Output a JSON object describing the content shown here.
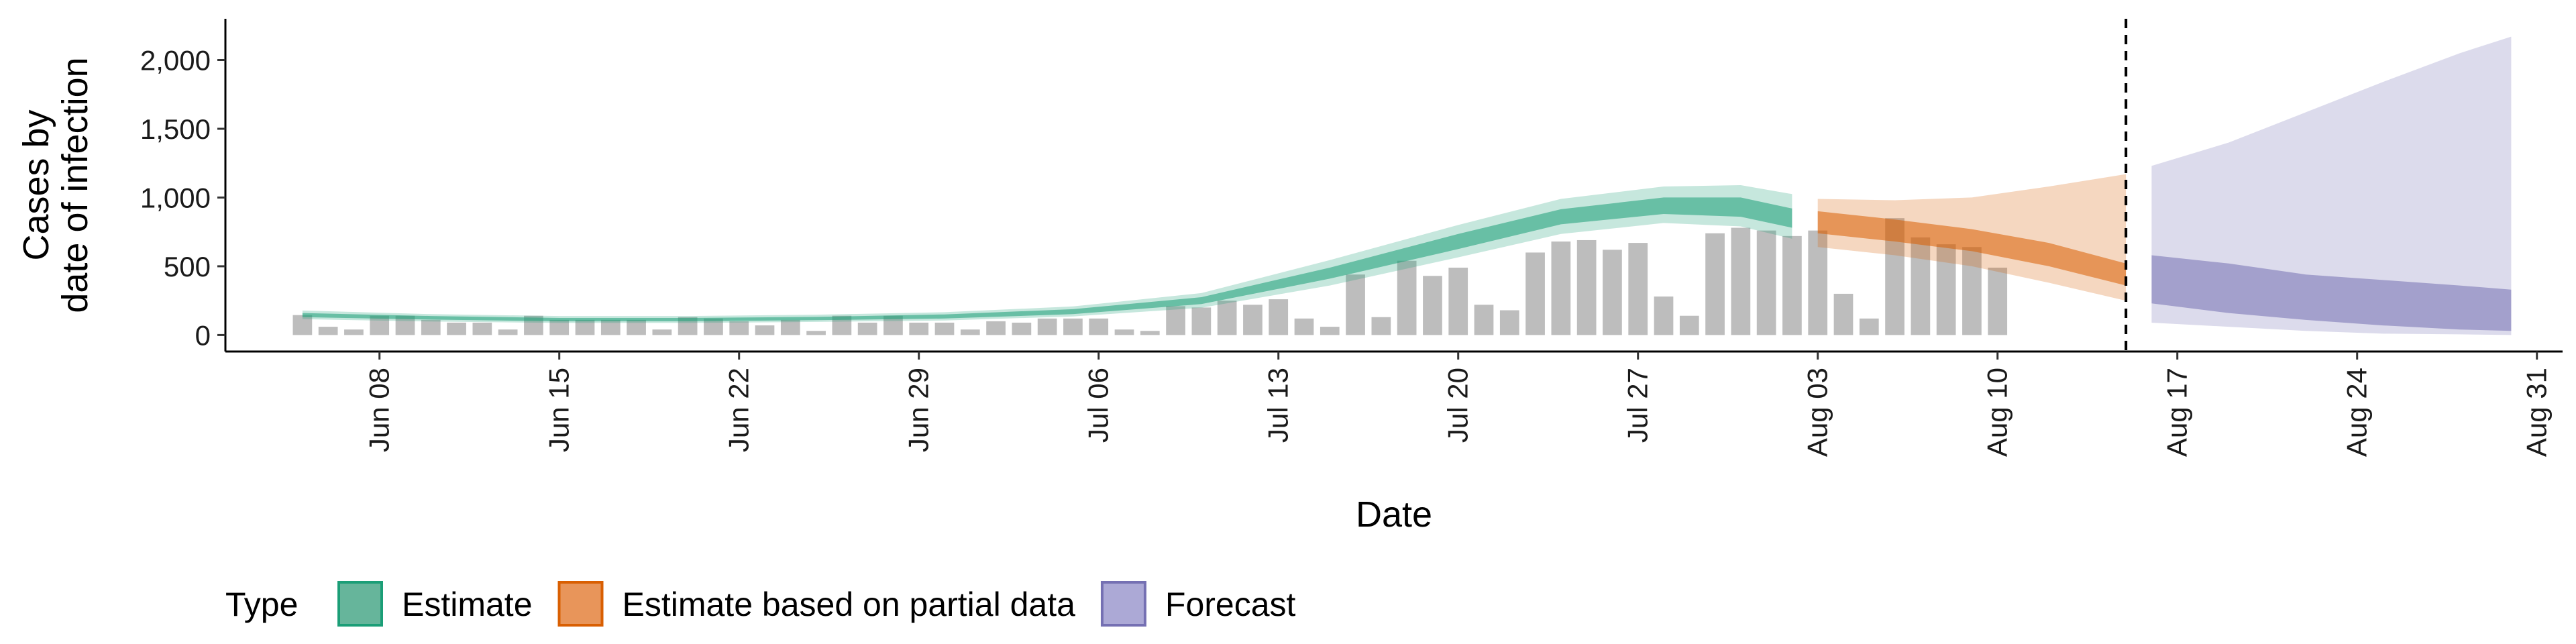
{
  "chart_data": {
    "type": "area",
    "xlabel": "Date",
    "ylabel_lines": [
      "Cases by",
      "date of infection"
    ],
    "x_start": "2020-06-05",
    "xlim": [
      "2020-06-02",
      "2020-09-01"
    ],
    "ylim": [
      -120,
      2300
    ],
    "grid": false,
    "x_ticks": [
      {
        "date": "2020-06-08",
        "label": "Jun 08"
      },
      {
        "date": "2020-06-15",
        "label": "Jun 15"
      },
      {
        "date": "2020-06-22",
        "label": "Jun 22"
      },
      {
        "date": "2020-06-29",
        "label": "Jun 29"
      },
      {
        "date": "2020-07-06",
        "label": "Jul 06"
      },
      {
        "date": "2020-07-13",
        "label": "Jul 13"
      },
      {
        "date": "2020-07-20",
        "label": "Jul 20"
      },
      {
        "date": "2020-07-27",
        "label": "Jul 27"
      },
      {
        "date": "2020-08-03",
        "label": "Aug 03"
      },
      {
        "date": "2020-08-10",
        "label": "Aug 10"
      },
      {
        "date": "2020-08-17",
        "label": "Aug 17"
      },
      {
        "date": "2020-08-24",
        "label": "Aug 24"
      },
      {
        "date": "2020-08-31",
        "label": "Aug 31"
      }
    ],
    "y_ticks": [
      {
        "value": 0,
        "label": "0"
      },
      {
        "value": 500,
        "label": "500"
      },
      {
        "value": 1000,
        "label": "1,000"
      },
      {
        "value": 1500,
        "label": "1,500"
      },
      {
        "value": 2000,
        "label": "2,000"
      }
    ],
    "reported_cases": [
      145,
      60,
      40,
      140,
      140,
      110,
      90,
      90,
      40,
      140,
      110,
      110,
      110,
      110,
      40,
      130,
      120,
      100,
      70,
      110,
      30,
      140,
      90,
      140,
      90,
      90,
      40,
      100,
      90,
      120,
      120,
      120,
      40,
      30,
      210,
      200,
      250,
      220,
      260,
      120,
      60,
      440,
      130,
      540,
      430,
      490,
      220,
      180,
      600,
      680,
      690,
      620,
      670,
      280,
      140,
      740,
      780,
      760,
      720,
      760,
      300,
      120,
      850,
      710,
      660,
      640,
      490
    ],
    "reporting_cutoff": "2020-08-15",
    "series": [
      {
        "name": "Estimate",
        "color": "#1b9e77",
        "dates": [
          "2020-06-05",
          "2020-06-10",
          "2020-06-15",
          "2020-06-20",
          "2020-06-25",
          "2020-06-30",
          "2020-07-05",
          "2020-07-10",
          "2020-07-15",
          "2020-07-20",
          "2020-07-24",
          "2020-07-28",
          "2020-07-31",
          "2020-08-02"
        ],
        "median": [
          145,
          125,
          112,
          112,
          120,
          135,
          170,
          250,
          450,
          680,
          860,
          940,
          930,
          850
        ],
        "lower_50": [
          130,
          112,
          100,
          100,
          108,
          120,
          152,
          225,
          410,
          625,
          805,
          880,
          860,
          780
        ],
        "upper_50": [
          160,
          138,
          124,
          124,
          132,
          150,
          188,
          275,
          490,
          735,
          915,
          1000,
          1000,
          920
        ],
        "lower_90": [
          115,
          98,
          88,
          88,
          95,
          106,
          135,
          198,
          360,
          565,
          735,
          815,
          790,
          700
        ],
        "upper_90": [
          178,
          152,
          138,
          138,
          148,
          166,
          208,
          305,
          545,
          800,
          990,
          1080,
          1090,
          1025
        ]
      },
      {
        "name": "Estimate based on partial data",
        "color": "#d95f02",
        "dates": [
          "2020-08-03",
          "2020-08-06",
          "2020-08-09",
          "2020-08-12",
          "2020-08-15"
        ],
        "median": [
          820,
          760,
          690,
          580,
          440
        ],
        "lower_50": [
          740,
          680,
          610,
          500,
          360
        ],
        "upper_50": [
          900,
          840,
          770,
          670,
          520
        ],
        "lower_90": [
          640,
          580,
          500,
          380,
          250
        ],
        "upper_90": [
          990,
          980,
          1000,
          1080,
          1170
        ]
      },
      {
        "name": "Forecast",
        "color": "#7570b3",
        "dates": [
          "2020-08-16",
          "2020-08-19",
          "2020-08-22",
          "2020-08-25",
          "2020-08-28",
          "2020-08-30"
        ],
        "median": [
          400,
          310,
          240,
          200,
          180,
          170
        ],
        "lower_50": [
          230,
          160,
          110,
          70,
          40,
          30
        ],
        "upper_50": [
          580,
          520,
          440,
          400,
          360,
          330
        ],
        "lower_90": [
          90,
          60,
          30,
          10,
          5,
          0
        ],
        "upper_90": [
          1230,
          1400,
          1620,
          1840,
          2050,
          2170
        ]
      }
    ],
    "legend": {
      "title": "Type",
      "position": "bottom",
      "items": [
        {
          "label": "Estimate",
          "fill": "#66b59b",
          "stroke": "#1b9e77"
        },
        {
          "label": "Estimate based on partial data",
          "fill": "#e8955a",
          "stroke": "#d95f02"
        },
        {
          "label": "Forecast",
          "fill": "#aca9d6",
          "stroke": "#7570b3"
        }
      ]
    }
  }
}
